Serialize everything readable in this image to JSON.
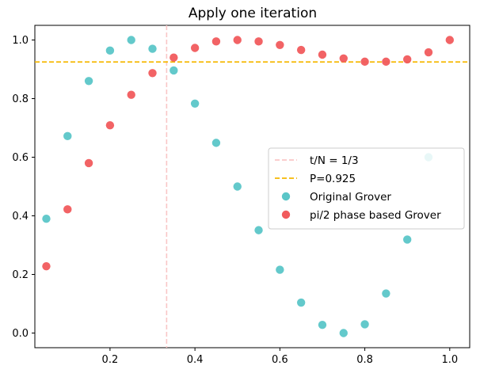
{
  "chart_data": {
    "type": "scatter",
    "title": "Apply one iteration",
    "xlabel": "",
    "ylabel": "",
    "xlim": [
      0.023,
      1.047
    ],
    "ylim": [
      -0.05,
      1.05
    ],
    "xticks": [
      0.2,
      0.4,
      0.6,
      0.8,
      1.0
    ],
    "xtick_labels": [
      "0.2",
      "0.4",
      "0.6",
      "0.8",
      "1.0"
    ],
    "yticks": [
      0.0,
      0.2,
      0.4,
      0.6,
      0.8,
      1.0
    ],
    "ytick_labels": [
      "0.0",
      "0.2",
      "0.4",
      "0.6",
      "0.8",
      "1.0"
    ],
    "grid": false,
    "legend_position": "center-right",
    "colors": {
      "original": "#5bc6c8",
      "phase": "#f15b5d",
      "vline": "#f9c6c6",
      "hline": "#f5b800"
    },
    "lines": [
      {
        "label": "t/N = 1/3",
        "orientation": "vertical",
        "value": 0.3333,
        "style": "dashed"
      },
      {
        "label": "P=0.925",
        "orientation": "horizontal",
        "value": 0.925,
        "style": "dashed"
      }
    ],
    "series": [
      {
        "name": "Original Grover",
        "x": [
          0.05,
          0.1,
          0.15,
          0.2,
          0.25,
          0.3,
          0.35,
          0.4,
          0.45,
          0.5,
          0.55,
          0.6,
          0.65,
          0.7,
          0.75,
          0.8,
          0.85,
          0.9,
          0.95
        ],
        "y": [
          0.39,
          0.672,
          0.86,
          0.964,
          1.0,
          0.97,
          0.896,
          0.783,
          0.649,
          0.5,
          0.351,
          0.216,
          0.104,
          0.028,
          0.0,
          0.03,
          0.135,
          0.319,
          0.6
        ]
      },
      {
        "name": "pi/2 phase based Grover",
        "x": [
          0.05,
          0.1,
          0.15,
          0.2,
          0.25,
          0.3,
          0.35,
          0.4,
          0.45,
          0.5,
          0.55,
          0.6,
          0.65,
          0.7,
          0.75,
          0.8,
          0.85,
          0.9,
          0.95,
          1.0
        ],
        "y": [
          0.228,
          0.422,
          0.58,
          0.709,
          0.813,
          0.887,
          0.94,
          0.973,
          0.995,
          1.0,
          0.995,
          0.983,
          0.966,
          0.95,
          0.937,
          0.926,
          0.926,
          0.934,
          0.958,
          1.0
        ]
      }
    ]
  }
}
